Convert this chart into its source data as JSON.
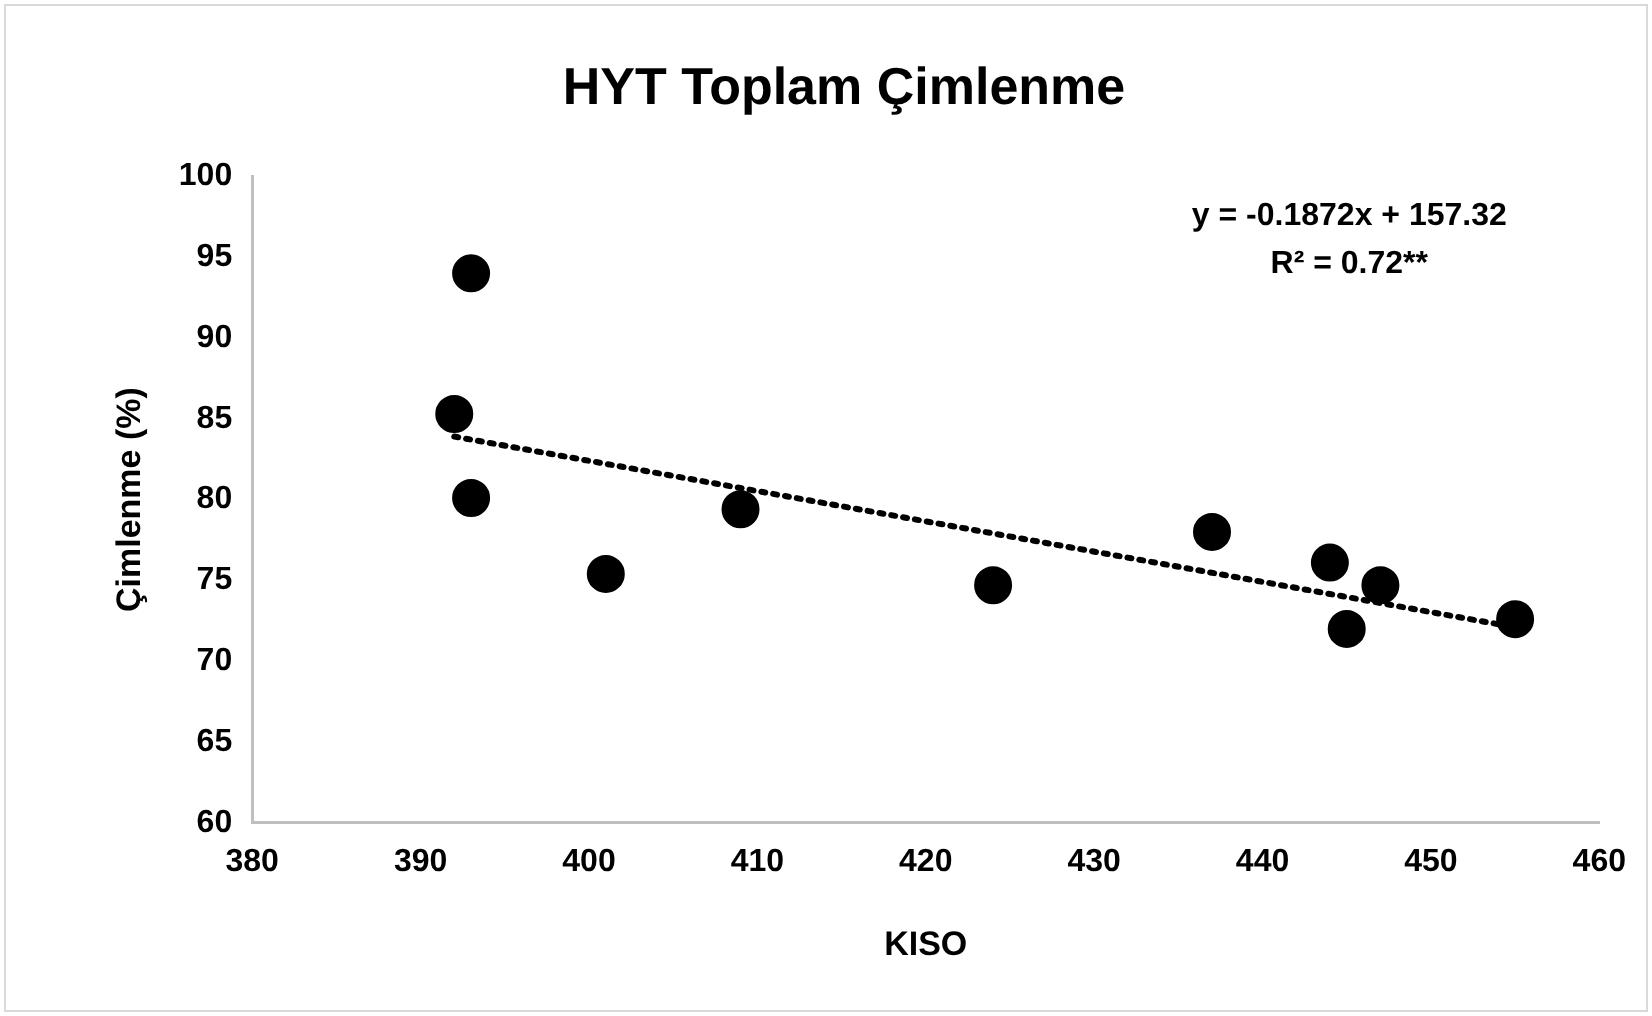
{
  "chart_data": {
    "type": "scatter",
    "title": "HYT Toplam Çimlenme",
    "xlabel": "KISO",
    "ylabel": "Çimlenme (%)",
    "xlim": [
      380,
      460
    ],
    "xticks": [
      380,
      390,
      400,
      410,
      420,
      430,
      440,
      450,
      460
    ],
    "ylim": [
      60,
      100
    ],
    "yticks": [
      60,
      65,
      70,
      75,
      80,
      85,
      90,
      95,
      100
    ],
    "grid": false,
    "legend": false,
    "marker": "circle",
    "annotations": [
      "y = -0.1872x + 157.32",
      "R² = 0.72**"
    ],
    "series": [
      {
        "color": "#000000",
        "x": [
          393,
          392,
          393,
          401,
          409,
          424,
          437,
          444,
          447,
          445,
          455
        ],
        "values": [
          94.0,
          85.3,
          80.1,
          75.4,
          79.4,
          74.7,
          78.0,
          76.1,
          74.7,
          72.0,
          72.6
        ]
      },
      {
        "type": "line",
        "color": "#000000",
        "line_style": "dotted",
        "marker": "none",
        "x": [
          392,
          455
        ],
        "values": [
          83.9,
          72.1
        ]
      }
    ]
  }
}
